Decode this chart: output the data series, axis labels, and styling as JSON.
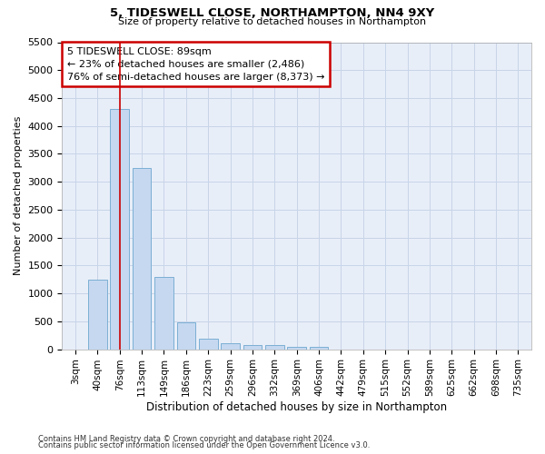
{
  "title1": "5, TIDESWELL CLOSE, NORTHAMPTON, NN4 9XY",
  "title2": "Size of property relative to detached houses in Northampton",
  "xlabel": "Distribution of detached houses by size in Northampton",
  "ylabel": "Number of detached properties",
  "footnote1": "Contains HM Land Registry data © Crown copyright and database right 2024.",
  "footnote2": "Contains public sector information licensed under the Open Government Licence v3.0.",
  "bar_labels": [
    "3sqm",
    "40sqm",
    "76sqm",
    "113sqm",
    "149sqm",
    "186sqm",
    "223sqm",
    "259sqm",
    "296sqm",
    "332sqm",
    "369sqm",
    "406sqm",
    "442sqm",
    "479sqm",
    "515sqm",
    "552sqm",
    "589sqm",
    "625sqm",
    "662sqm",
    "698sqm",
    "735sqm"
  ],
  "bar_values": [
    0,
    1250,
    4300,
    3250,
    1300,
    480,
    190,
    100,
    70,
    70,
    45,
    45,
    0,
    0,
    0,
    0,
    0,
    0,
    0,
    0,
    0
  ],
  "bar_color": "#c5d8f0",
  "bar_edge_color": "#7bafd4",
  "grid_color": "#c8d4e8",
  "background_color": "#e8eef8",
  "ylim": [
    0,
    5500
  ],
  "yticks": [
    0,
    500,
    1000,
    1500,
    2000,
    2500,
    3000,
    3500,
    4000,
    4500,
    5000,
    5500
  ],
  "red_line_x": 2,
  "annotation_line1": "5 TIDESWELL CLOSE: 89sqm",
  "annotation_line2": "← 23% of detached houses are smaller (2,486)",
  "annotation_line3": "76% of semi-detached houses are larger (8,373) →",
  "annotation_box_color": "#ffffff",
  "annotation_box_edge": "#cc0000",
  "red_line_color": "#cc0000"
}
